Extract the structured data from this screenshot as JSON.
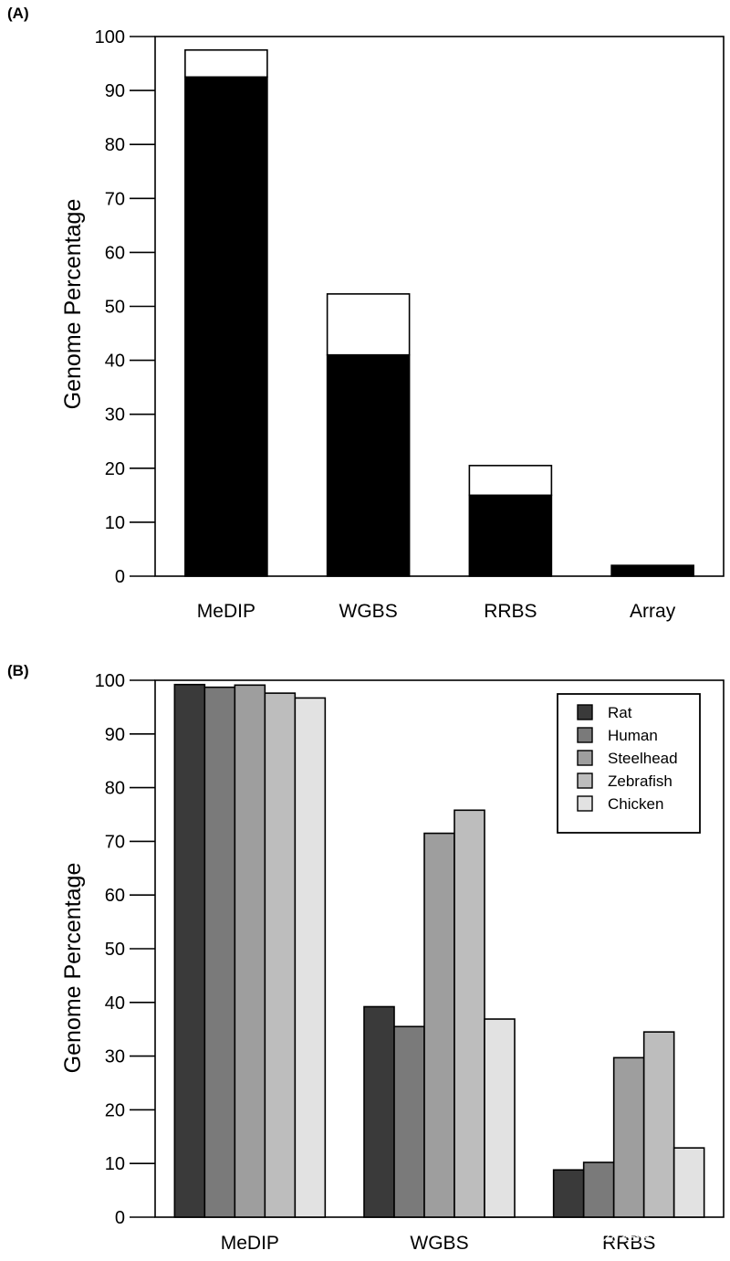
{
  "watermark": "知乎 @易基因科技",
  "chart_data": [
    {
      "panel_label": "(A)",
      "type": "bar",
      "stacked": true,
      "ylabel": "Genome Percentage",
      "ylim": [
        0,
        100
      ],
      "yticks": [
        0,
        10,
        20,
        30,
        40,
        50,
        60,
        70,
        80,
        90,
        100
      ],
      "categories": [
        "MeDIP",
        "WGBS",
        "RRBS",
        "Array"
      ],
      "series": [
        {
          "values": [
            92.5,
            41,
            15,
            2
          ],
          "color": "#000000"
        },
        {
          "values": [
            5,
            11.3,
            5.5,
            0
          ],
          "color": "#ffffff"
        }
      ]
    },
    {
      "panel_label": "(B)",
      "type": "bar",
      "ylabel": "Genome Percentage",
      "ylim": [
        0,
        100
      ],
      "yticks": [
        0,
        10,
        20,
        30,
        40,
        50,
        60,
        70,
        80,
        90,
        100
      ],
      "categories": [
        "MeDIP",
        "WGBS",
        "RRBS"
      ],
      "legend_position": "top-right",
      "series": [
        {
          "name": "Rat",
          "values": [
            99.2,
            39.2,
            8.8
          ],
          "color": "#3a3a3a"
        },
        {
          "name": "Human",
          "values": [
            98.7,
            35.5,
            10.2
          ],
          "color": "#7a7a7a"
        },
        {
          "name": "Steelhead",
          "values": [
            99.1,
            71.5,
            29.7
          ],
          "color": "#9e9e9e"
        },
        {
          "name": "Zebrafish",
          "values": [
            97.6,
            75.8,
            34.5
          ],
          "color": "#bdbdbd"
        },
        {
          "name": "Chicken",
          "values": [
            96.7,
            36.9,
            12.9
          ],
          "color": "#e2e2e2"
        }
      ]
    }
  ]
}
